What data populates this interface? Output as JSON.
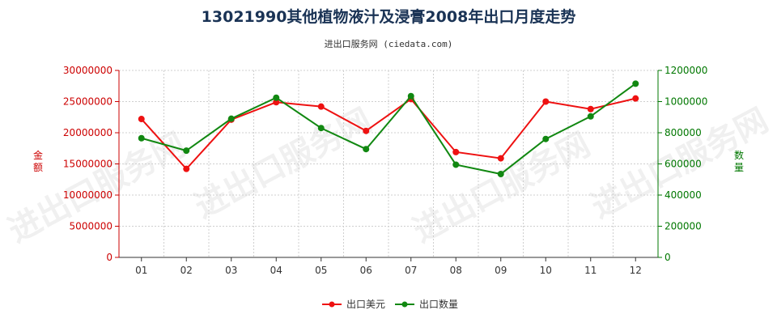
{
  "chart_data": {
    "type": "line",
    "title": "13021990其他植物液汁及浸膏2008年出口月度走势",
    "subtitle": "进出口服务网 (ciedata.com)",
    "watermark": "进出口服务网",
    "categories": [
      "01",
      "02",
      "03",
      "04",
      "05",
      "06",
      "07",
      "08",
      "09",
      "10",
      "11",
      "12"
    ],
    "y_left": {
      "label": "金额",
      "ticks": [
        "0",
        "5000000",
        "10000000",
        "15000000",
        "20000000",
        "25000000",
        "30000000"
      ],
      "lim": [
        0,
        30000000
      ],
      "color": "#cc0000"
    },
    "y_right": {
      "label": "数量",
      "ticks": [
        "0",
        "200000",
        "400000",
        "600000",
        "800000",
        "1000000",
        "1200000"
      ],
      "lim": [
        0,
        1200000
      ],
      "color": "#007700"
    },
    "grid": true,
    "legend_position": "bottom-center",
    "series": [
      {
        "name": "出口美元",
        "axis": "left",
        "color": "#ee1111",
        "values": [
          22200000,
          14200000,
          22100000,
          24900000,
          24200000,
          20300000,
          25400000,
          16900000,
          15900000,
          25000000,
          23800000,
          25500000
        ]
      },
      {
        "name": "出口数量",
        "axis": "right",
        "color": "#118811",
        "values": [
          765000,
          685000,
          890000,
          1025000,
          830000,
          695000,
          1035000,
          595000,
          535000,
          760000,
          905000,
          1115000
        ]
      }
    ]
  }
}
